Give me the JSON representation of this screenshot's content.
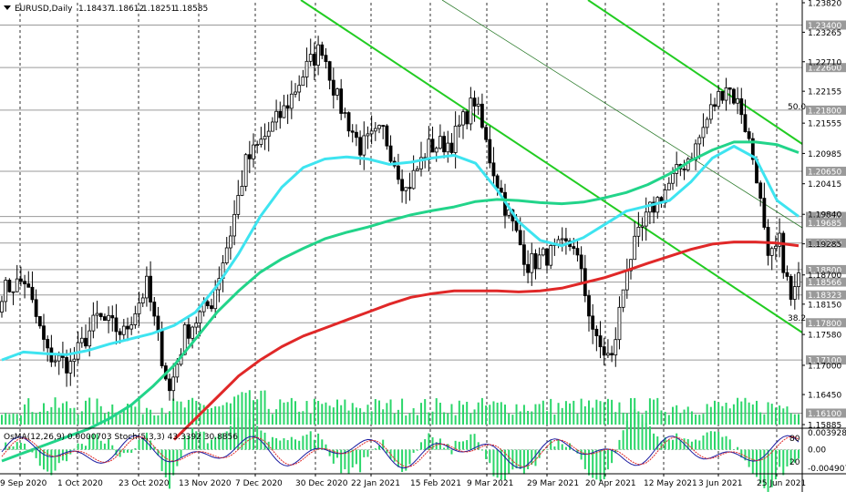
{
  "chart_data": {
    "type": "candlestick",
    "header": {
      "symbol": "EURUSD,Daily",
      "open": "1.18437",
      "high": "1.18612",
      "low": "1.18251",
      "close": "1.18585"
    },
    "ylim": [
      1.15885,
      1.2382
    ],
    "y_ticks": [
      "1.23820",
      "1.23265",
      "1.22710",
      "1.22155",
      "1.21555",
      "1.20985",
      "1.20415",
      "1.19840",
      "1.19285",
      "1.18700",
      "1.18150",
      "1.17580",
      "1.17000",
      "1.16450",
      "1.15885"
    ],
    "x_ticks": [
      "9 Sep 2020",
      "1 Oct 2020",
      "23 Oct 2020",
      "13 Nov 2020",
      "7 Dec 2020",
      "30 Dec 2020",
      "22 Jan 2021",
      "15 Feb 2021",
      "9 Mar 2021",
      "29 Mar 2021",
      "20 Apr 2021",
      "12 May 2021",
      "3 Jun 2021",
      "25 Jun 2021"
    ],
    "price_levels": [
      {
        "value": 1.234,
        "label": "1.23400"
      },
      {
        "value": 1.226,
        "label": "1.22600"
      },
      {
        "value": 1.218,
        "label": "1.21800"
      },
      {
        "value": 1.2065,
        "label": "1.20650"
      },
      {
        "value": 1.198,
        "label": "1.19800"
      },
      {
        "value": 1.19685,
        "label": "1.19685"
      },
      {
        "value": 1.193,
        "label": "1.19300"
      },
      {
        "value": 1.188,
        "label": "1.18800"
      },
      {
        "value": 1.18566,
        "label": "1.18566"
      },
      {
        "value": 1.18323,
        "label": "1.18323"
      },
      {
        "value": 1.178,
        "label": "1.17800"
      },
      {
        "value": 1.171,
        "label": "1.17100"
      },
      {
        "value": 1.161,
        "label": "1.16100"
      }
    ],
    "fib_labels": [
      "50.0",
      "38.2"
    ],
    "moving_averages": [
      {
        "color": "#3ee4f0",
        "values": [
          1.171,
          1.1725,
          1.1722,
          1.172,
          1.1728,
          1.174,
          1.175,
          1.176,
          1.1775,
          1.18,
          1.185,
          1.191,
          1.198,
          1.2035,
          1.2072,
          1.2088,
          1.2092,
          1.2088,
          1.2078,
          1.2082,
          1.209,
          1.2095,
          1.208,
          1.203,
          1.197,
          1.1935,
          1.1925,
          1.194,
          1.1965,
          1.199,
          1.2,
          1.201,
          1.2045,
          1.209,
          1.2112,
          1.209,
          1.201,
          1.198
        ]
      },
      {
        "color": "#22d48a",
        "values": [
          1.152,
          1.1535,
          1.155,
          1.1565,
          1.158,
          1.16,
          1.1625,
          1.166,
          1.17,
          1.175,
          1.18,
          1.184,
          1.1875,
          1.19,
          1.192,
          1.1938,
          1.195,
          1.196,
          1.1972,
          1.1983,
          1.1991,
          1.1998,
          1.2008,
          1.2012,
          1.201,
          1.2006,
          1.2004,
          1.2007,
          1.2015,
          1.2025,
          1.204,
          1.206,
          1.2085,
          1.2105,
          1.212,
          1.212,
          1.2115,
          1.21
        ]
      },
      {
        "color": "#e02828",
        "values": [
          null,
          null,
          null,
          null,
          null,
          null,
          null,
          null,
          1.156,
          1.16,
          1.164,
          1.168,
          1.171,
          1.1735,
          1.1755,
          1.177,
          1.1785,
          1.18,
          1.1815,
          1.1828,
          1.1835,
          1.184,
          1.184,
          1.184,
          1.1838,
          1.184,
          1.1845,
          1.1855,
          1.1865,
          1.1878,
          1.1892,
          1.1905,
          1.1918,
          1.1928,
          1.1932,
          1.1932,
          1.193,
          1.1925
        ]
      }
    ],
    "oscillator": {
      "label": "OsMA(12,26,9) 0.0000703  Stoch(5,3,3) 43.3392 30.8856",
      "ylim": [
        -0.004907,
        0.003928
      ],
      "y_ticks": [
        "0.003928",
        "0.00",
        "-0.004907"
      ],
      "stoch_levels": [
        "80",
        "20"
      ]
    }
  }
}
